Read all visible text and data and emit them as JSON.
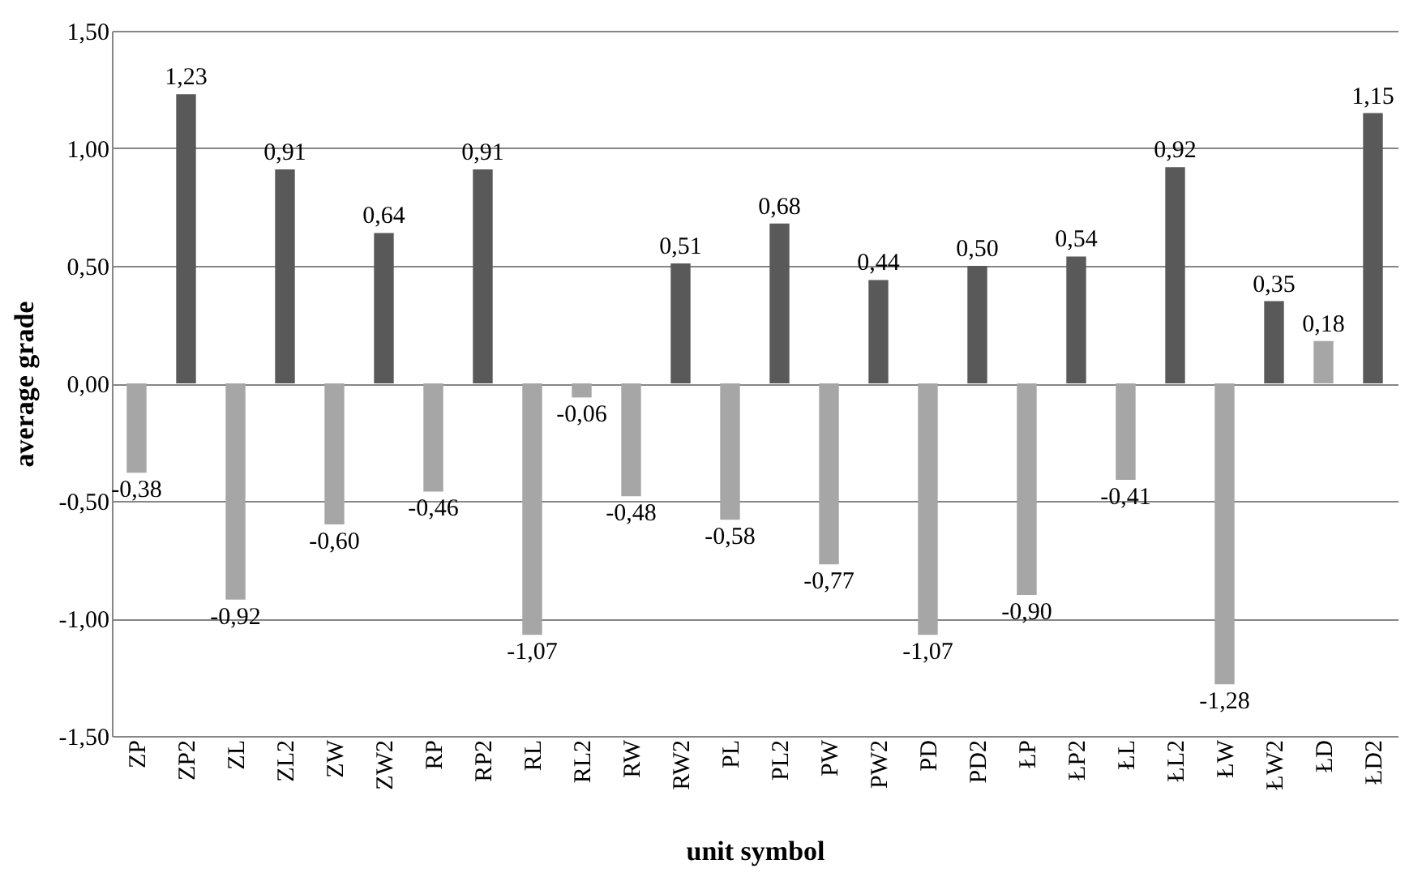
{
  "chart_data": {
    "type": "bar",
    "xlabel": "unit symbol",
    "ylabel": "average grade",
    "categories": [
      "ZP",
      "ZP2",
      "ZL",
      "ZL2",
      "ZW",
      "ZW2",
      "RP",
      "RP2",
      "RL",
      "RL2",
      "RW",
      "RW2",
      "PL",
      "PL2",
      "PW",
      "PW2",
      "PD",
      "PD2",
      "ŁP",
      "ŁP2",
      "ŁL",
      "ŁL2",
      "ŁW",
      "ŁW2",
      "ŁD",
      "ŁD2"
    ],
    "values": [
      -0.38,
      1.23,
      -0.92,
      0.91,
      -0.6,
      0.64,
      -0.46,
      0.91,
      -1.07,
      -0.06,
      -0.48,
      0.51,
      -0.58,
      0.68,
      -0.77,
      0.44,
      -1.07,
      0.5,
      -0.9,
      0.54,
      -0.41,
      0.92,
      -1.28,
      0.35,
      0.18,
      1.15
    ],
    "value_labels": [
      "-0,38",
      "1,23",
      "-0,92",
      "0,91",
      "-0,60",
      "0,64",
      "-0,46",
      "0,91",
      "-1,07",
      "-0,06",
      "-0,48",
      "0,51",
      "-0,58",
      "0,68",
      "-0,77",
      "0,44",
      "-1,07",
      "0,50",
      "-0,90",
      "0,54",
      "-0,41",
      "0,92",
      "-1,28",
      "0,35",
      "0,18",
      "1,15"
    ],
    "colors": [
      "#a6a6a6",
      "#595959",
      "#a6a6a6",
      "#595959",
      "#a6a6a6",
      "#595959",
      "#a6a6a6",
      "#595959",
      "#a6a6a6",
      "#a6a6a6",
      "#a6a6a6",
      "#595959",
      "#a6a6a6",
      "#595959",
      "#a6a6a6",
      "#595959",
      "#a6a6a6",
      "#595959",
      "#a6a6a6",
      "#595959",
      "#a6a6a6",
      "#595959",
      "#a6a6a6",
      "#595959",
      "#a6a6a6",
      "#595959"
    ],
    "ylim": [
      -1.5,
      1.5
    ],
    "yticks": [
      {
        "value": -1.5,
        "label": "-1,50"
      },
      {
        "value": -1.0,
        "label": "-1,00"
      },
      {
        "value": -0.5,
        "label": "-0,50"
      },
      {
        "value": 0,
        "label": "0,00"
      },
      {
        "value": 0.5,
        "label": "0,50"
      },
      {
        "value": 1.0,
        "label": "1,00"
      },
      {
        "value": 1.5,
        "label": "1,50"
      }
    ],
    "grid": "y",
    "legend": false
  }
}
